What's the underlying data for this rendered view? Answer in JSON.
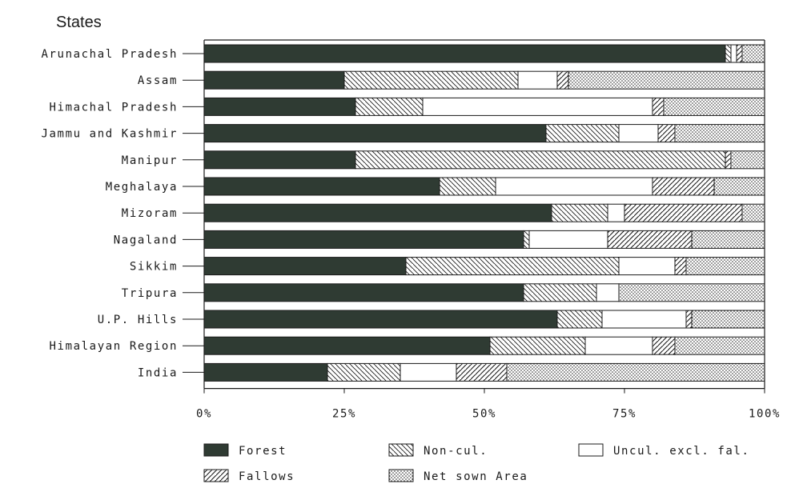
{
  "chart_data": {
    "type": "bar",
    "orientation": "horizontal",
    "stacked": true,
    "percent": true,
    "title": "States",
    "xlim": [
      0,
      100
    ],
    "x_ticks": [
      "0%",
      "25%",
      "50%",
      "75%",
      "100%"
    ],
    "categories": [
      "Arunachal Pradesh",
      "Assam",
      "Himachal Pradesh",
      "Jammu and Kashmir",
      "Manipur",
      "Meghalaya",
      "Mizoram",
      "Nagaland",
      "Sikkim",
      "Tripura",
      "U.P. Hills",
      "Himalayan Region",
      "India"
    ],
    "series": [
      {
        "name": "Forest",
        "pattern": "solid-dark",
        "values": [
          93,
          25,
          27,
          61,
          27,
          42,
          62,
          57,
          36,
          57,
          63,
          51,
          22
        ]
      },
      {
        "name": "Non-cul.",
        "pattern": "back-diagonal-hatch",
        "values": [
          1,
          31,
          12,
          13,
          66,
          10,
          10,
          1,
          38,
          13,
          8,
          17,
          13
        ]
      },
      {
        "name": "Uncul. excl. fal.",
        "pattern": "plain-white",
        "values": [
          1,
          7,
          41,
          7,
          0,
          28,
          3,
          14,
          10,
          4,
          15,
          12,
          10
        ]
      },
      {
        "name": "Fallows",
        "pattern": "forward-diagonal-hatch",
        "values": [
          1,
          2,
          2,
          3,
          1,
          11,
          21,
          15,
          2,
          0,
          1,
          4,
          9
        ]
      },
      {
        "name": "Net sown Area",
        "pattern": "dotted",
        "values": [
          4,
          35,
          18,
          16,
          6,
          9,
          4,
          13,
          14,
          26,
          13,
          16,
          46
        ]
      }
    ],
    "legend_position": "bottom",
    "grid": false
  },
  "colors": {
    "ink": "#1a1a1a",
    "forest": "#2f3b33",
    "background": "#ffffff"
  }
}
